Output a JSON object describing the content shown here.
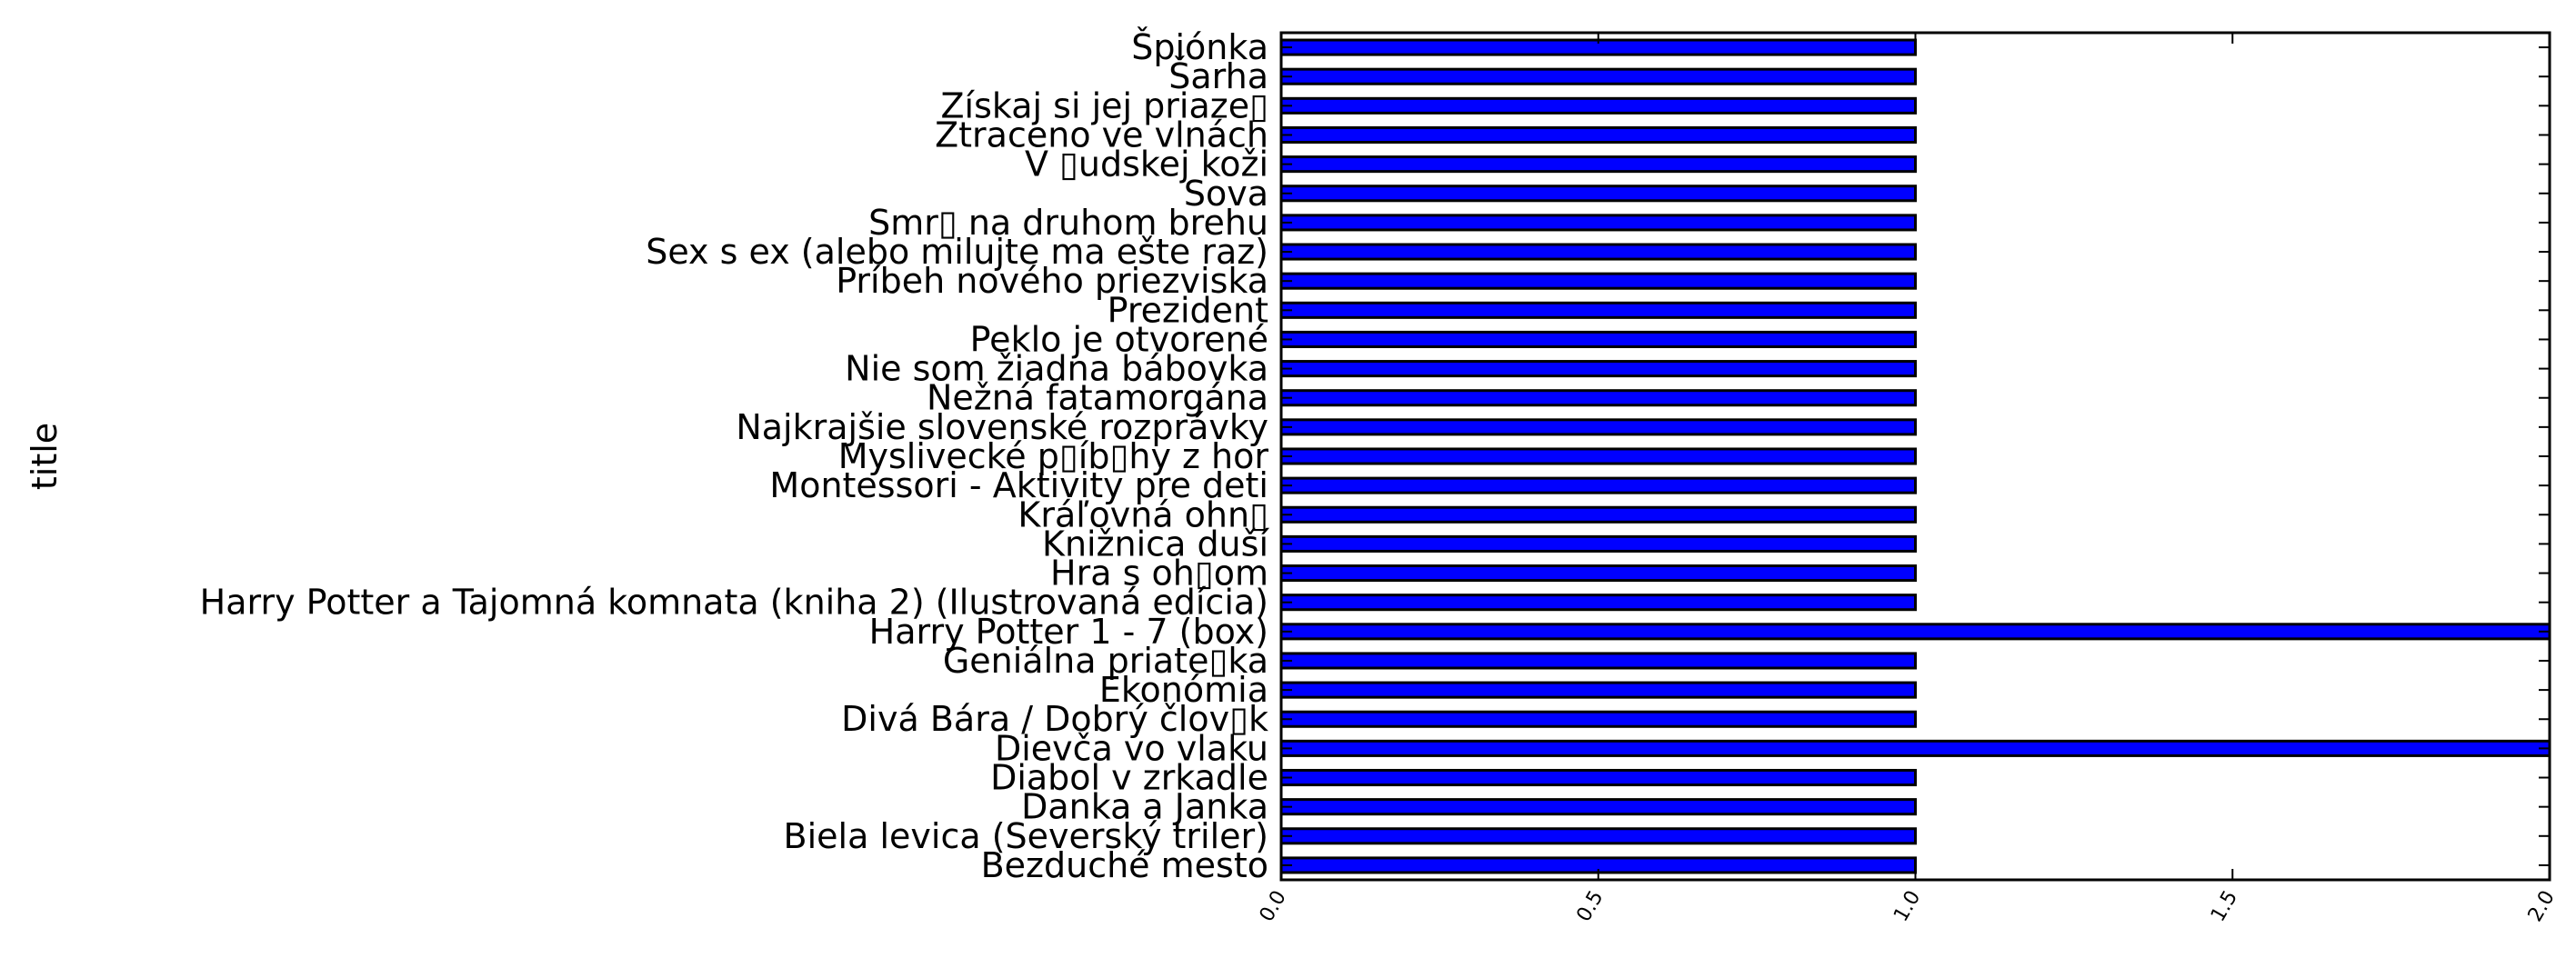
{
  "chart_data": {
    "type": "bar",
    "orientation": "horizontal",
    "title": "",
    "xlabel": "",
    "ylabel": "title",
    "xlim": [
      0.0,
      2.0
    ],
    "xticks": [
      0.0,
      0.5,
      1.0,
      1.5,
      2.0
    ],
    "xtick_labels": [
      "0.0",
      "0.5",
      "1.0",
      "1.5",
      "2.0"
    ],
    "grid": false,
    "legend": "none",
    "bar_color": "#0000ff",
    "bar_edge_color": "#000000",
    "categories": [
      "Bezduché mesto",
      "Biela levica (Severský triler)",
      "Danka a Janka",
      "Diabol v zrkadle",
      "Dievča vo vlaku",
      "Divá Bára / Dobrý člov▯k",
      "Ekonómia",
      "Geniálna priate▯ka",
      "Harry Potter 1 - 7 (box)",
      "Harry Potter a Tajomná komnata (kniha 2) (Ilustrovaná edícia)",
      "Hra s oh▯om",
      "Knižnica duší",
      "Kráľovná ohn▯",
      "Montessori - Aktivity pre deti",
      "Myslivecké p▯íb▯hy z hor",
      "Najkrajšie slovenské rozprávky",
      "Nežná fatamorgána",
      "Nie som žiadna bábovka",
      "Peklo je otvorené",
      "Prezident",
      "Príbeh nového priezviska",
      "Sex s ex (alebo milujte ma ešte raz)",
      "Smr▯ na druhom brehu",
      "Sova",
      "V ▯udskej koži",
      "Ztraceno ve vlnách",
      "Získaj si jej priaze▯",
      "Šarha",
      "Špiónka"
    ],
    "values": [
      1,
      1,
      1,
      1,
      2,
      1,
      1,
      1,
      2,
      1,
      1,
      1,
      1,
      1,
      1,
      1,
      1,
      1,
      1,
      1,
      1,
      1,
      1,
      1,
      1,
      1,
      1,
      1,
      1
    ]
  }
}
